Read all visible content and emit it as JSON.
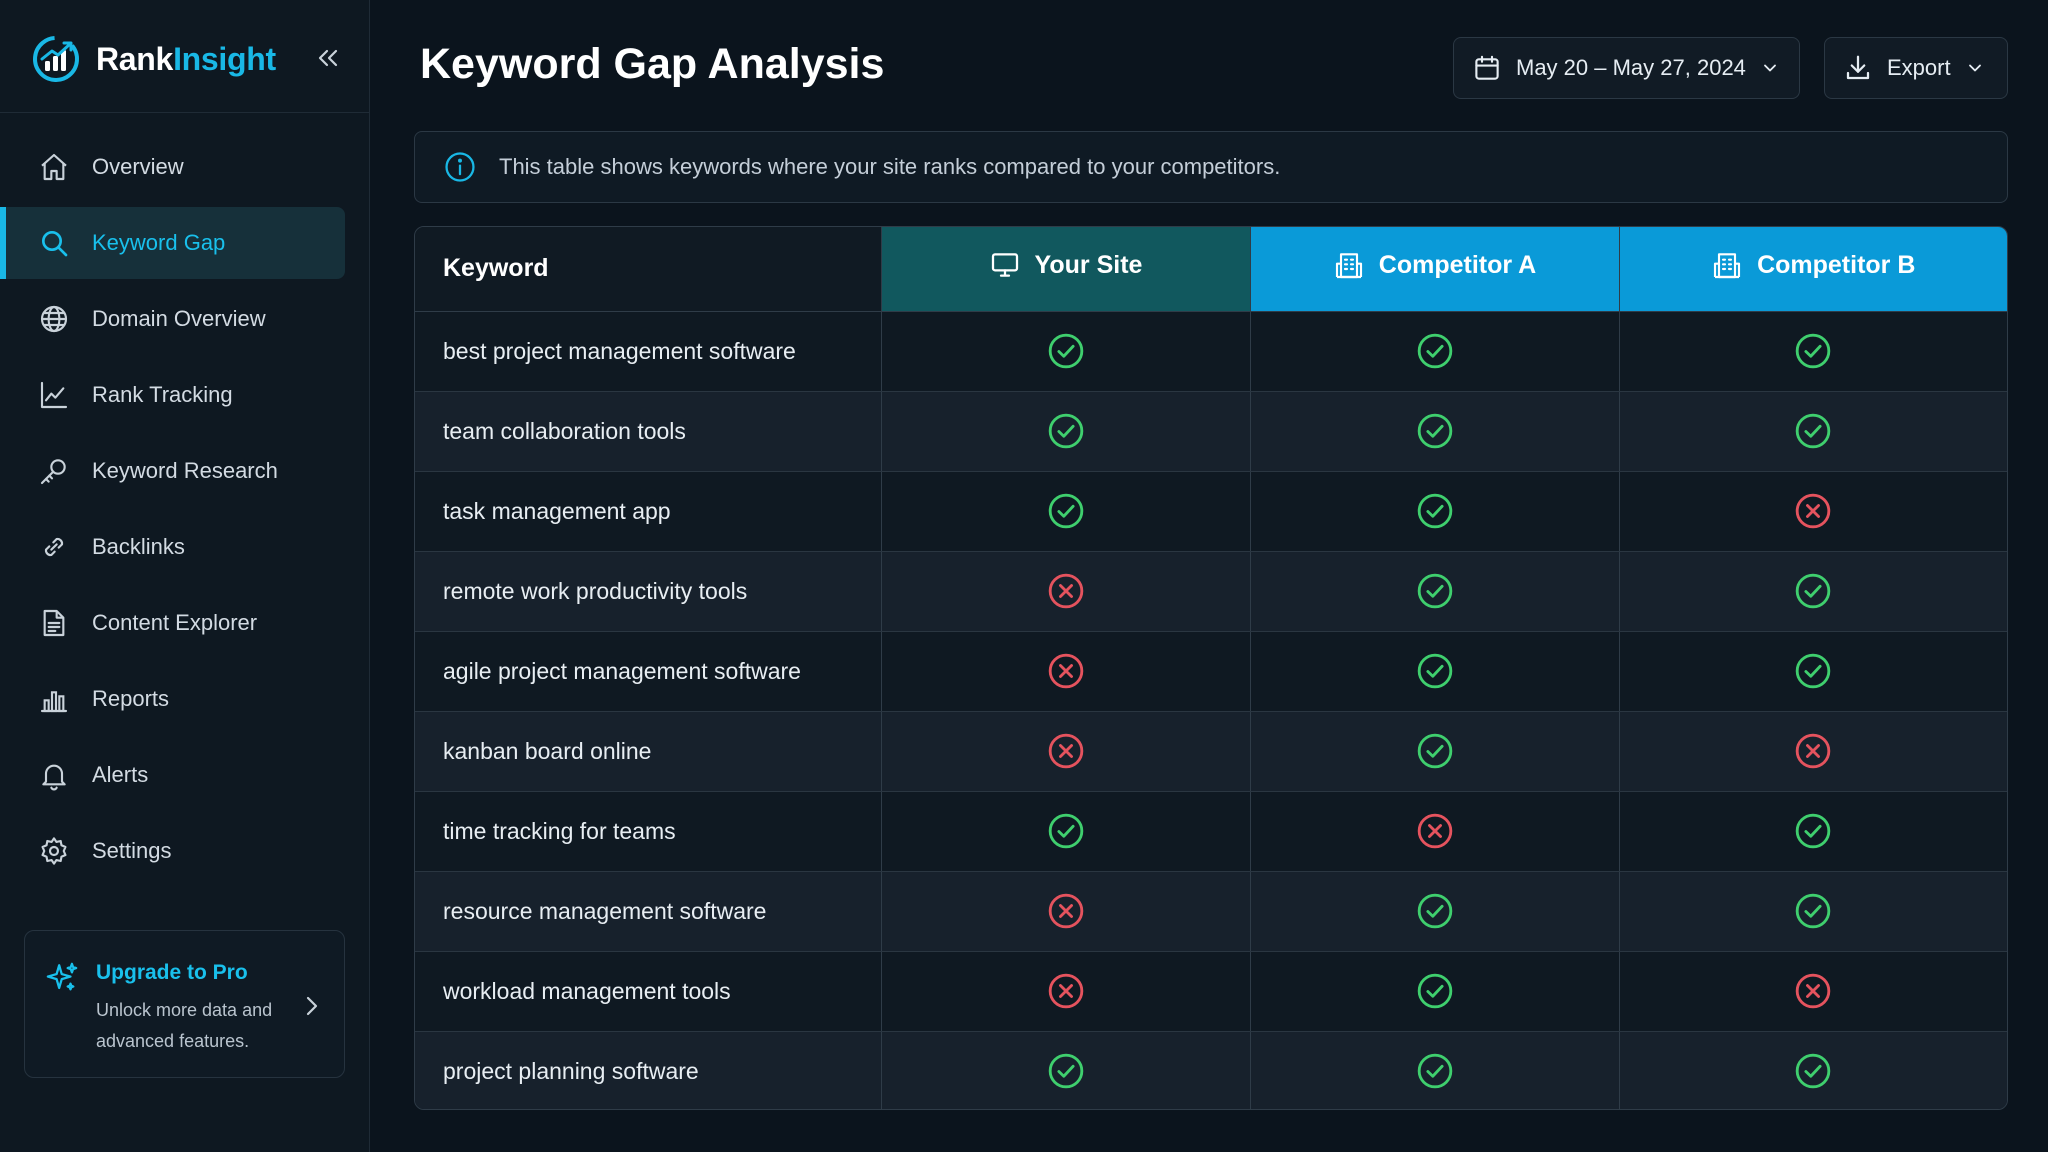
{
  "brand": {
    "name_part1": "Rank",
    "name_part2": "Insight",
    "accent": "#19b8e6"
  },
  "sidebar": {
    "items": [
      {
        "label": "Overview",
        "icon": "home-icon"
      },
      {
        "label": "Keyword Gap",
        "icon": "search-icon",
        "active": true
      },
      {
        "label": "Domain Overview",
        "icon": "globe-icon"
      },
      {
        "label": "Rank Tracking",
        "icon": "line-chart-icon"
      },
      {
        "label": "Keyword Research",
        "icon": "key-icon"
      },
      {
        "label": "Backlinks",
        "icon": "link-icon"
      },
      {
        "label": "Content Explorer",
        "icon": "document-icon"
      },
      {
        "label": "Reports",
        "icon": "bar-chart-icon"
      },
      {
        "label": "Alerts",
        "icon": "bell-icon"
      },
      {
        "label": "Settings",
        "icon": "gear-icon"
      }
    ],
    "upgrade": {
      "title": "Upgrade to Pro",
      "text": "Unlock more data and advanced features."
    }
  },
  "header": {
    "title": "Keyword Gap Analysis",
    "date_range": "May 20 – May 27, 2024",
    "export_label": "Export"
  },
  "info": {
    "text": "This table shows keywords where your site ranks compared to your competitors."
  },
  "table": {
    "columns": [
      "Keyword",
      "Your Site",
      "Competitor A",
      "Competitor B"
    ],
    "rows": [
      {
        "keyword": "best project management software",
        "your_site": true,
        "competitor_a": true,
        "competitor_b": true
      },
      {
        "keyword": "team collaboration tools",
        "your_site": true,
        "competitor_a": true,
        "competitor_b": true
      },
      {
        "keyword": "task management app",
        "your_site": true,
        "competitor_a": true,
        "competitor_b": false
      },
      {
        "keyword": "remote work productivity tools",
        "your_site": false,
        "competitor_a": true,
        "competitor_b": true
      },
      {
        "keyword": "agile project management software",
        "your_site": false,
        "competitor_a": true,
        "competitor_b": true
      },
      {
        "keyword": "kanban board online",
        "your_site": false,
        "competitor_a": true,
        "competitor_b": false
      },
      {
        "keyword": "time tracking for teams",
        "your_site": true,
        "competitor_a": false,
        "competitor_b": true
      },
      {
        "keyword": "resource management software",
        "your_site": false,
        "competitor_a": true,
        "competitor_b": true
      },
      {
        "keyword": "workload management tools",
        "your_site": false,
        "competitor_a": true,
        "competitor_b": false
      },
      {
        "keyword": "project planning software",
        "your_site": true,
        "competitor_a": true,
        "competitor_b": true
      }
    ]
  },
  "colors": {
    "ranks": "#3fcf6e",
    "not_ranks": "#e5535e",
    "your_site_header": "#11585e",
    "competitor_header": "#0a9ad8"
  }
}
